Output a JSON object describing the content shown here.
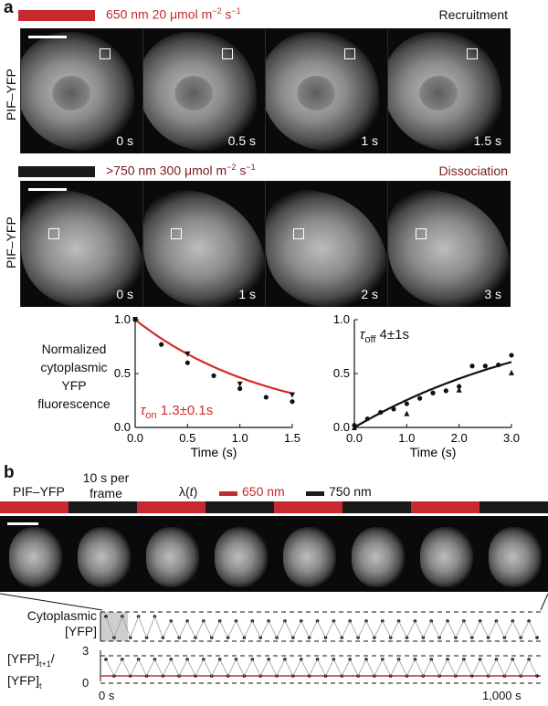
{
  "panel_a": {
    "letter": "a",
    "row1": {
      "condition_value": "650 nm 20 μmol m",
      "condition_exp1": "−2",
      "condition_mid": " s",
      "condition_exp2": "−1",
      "status": "Recruitment",
      "y_label": "PIF–YFP",
      "times": [
        "0 s",
        "0.5 s",
        "1 s",
        "1.5 s"
      ],
      "bar_color": "#c62a2f"
    },
    "row2": {
      "condition_value": ">750 nm 300 μmol m",
      "condition_exp1": "−2",
      "condition_mid": " s",
      "condition_exp2": "−1",
      "status": "Dissociation",
      "y_label": "PIF–YFP",
      "times": [
        "0 s",
        "1 s",
        "2 s",
        "3 s"
      ],
      "bar_color": "#1a1a1a"
    },
    "plot_ylabel": [
      "Normalized",
      "cytoplasmic",
      "YFP",
      "fluorescence"
    ]
  },
  "chart_data": [
    {
      "type": "scatter",
      "xlabel": "Time (s)",
      "ylabel": "",
      "xlim": [
        0,
        1.5
      ],
      "ylim": [
        0,
        1.0
      ],
      "xticks": [
        "0.0",
        "0.5",
        "1.0",
        "1.5"
      ],
      "yticks": [
        "0.0",
        "0.5",
        "1.0"
      ],
      "annotation_symbol": "τ",
      "annotation_sub": "on",
      "annotation_value": " 1.3±0.1s",
      "fit_color": "#d42a2a",
      "series": [
        {
          "marker": "circle",
          "x": [
            0,
            0.25,
            0.5,
            0.75,
            1.0,
            1.25,
            1.5
          ],
          "y": [
            1.0,
            0.77,
            0.6,
            0.48,
            0.36,
            0.28,
            0.24
          ]
        },
        {
          "marker": "triangle-down",
          "x": [
            0,
            0.5,
            1.0,
            1.5
          ],
          "y": [
            1.0,
            0.68,
            0.4,
            0.3
          ]
        }
      ],
      "fit": {
        "tau": 1.3,
        "x0": 0,
        "x1": 1.5
      }
    },
    {
      "type": "scatter",
      "xlabel": "Time (s)",
      "ylabel": "",
      "xlim": [
        0,
        3.0
      ],
      "ylim": [
        0,
        1.0
      ],
      "xticks": [
        "0.0",
        "1.0",
        "2.0",
        "3.0"
      ],
      "yticks": [
        "0.0",
        "0.5",
        "1.0"
      ],
      "annotation_symbol": "τ",
      "annotation_sub": "off",
      "annotation_value": " 4±1s",
      "fit_color": "#111111",
      "series": [
        {
          "marker": "circle",
          "x": [
            0,
            0.25,
            0.5,
            0.75,
            1.0,
            1.25,
            1.5,
            1.75,
            2.0,
            2.25,
            2.5,
            2.75,
            3.0
          ],
          "y": [
            0.02,
            0.08,
            0.14,
            0.17,
            0.22,
            0.27,
            0.32,
            0.34,
            0.38,
            0.57,
            0.57,
            0.58,
            0.67
          ]
        },
        {
          "marker": "triangle-up",
          "x": [
            0,
            1.0,
            2.0,
            3.0
          ],
          "y": [
            0.0,
            0.13,
            0.35,
            0.51
          ]
        }
      ],
      "fit": {
        "tau": 4,
        "x0": 0,
        "x1": 3.0,
        "scale": 1.15
      }
    }
  ],
  "panel_b": {
    "letter": "b",
    "construct": "PIF–YFP",
    "frame_rate_line1": "10 s per",
    "frame_rate_line2": "frame",
    "lambda_label": "λ(",
    "lambda_var": "t",
    "lambda_close": ")",
    "legend_red": "650 nm",
    "legend_black": "750 nm",
    "red_color": "#c62a2f",
    "black_color": "#1a1a1a",
    "cyto_label_line1": "Cytoplasmic",
    "cyto_label_line2": "[YFP]",
    "ratio_label_line1": "[YFP]",
    "ratio_sub1": "t+1",
    "ratio_slash": "/",
    "ratio_label_line2": "[YFP]",
    "ratio_sub2": "t",
    "ratio_ytick_top": "3",
    "ratio_ytick_bottom": "0",
    "x_start": "0 s",
    "x_end": "1,000 s"
  }
}
